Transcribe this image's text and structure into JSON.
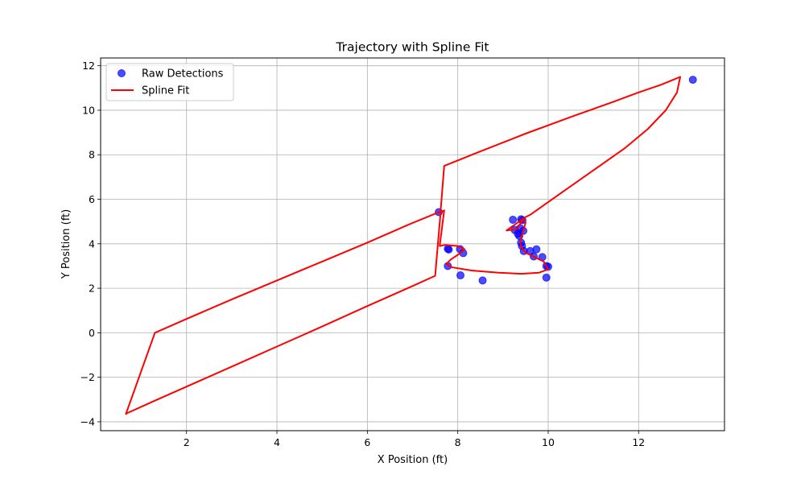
{
  "chart_data": {
    "type": "scatter",
    "title": "Trajectory with Spline Fit",
    "xlabel": "X Position (ft)",
    "ylabel": "Y Position (ft)",
    "xlim": [
      0.1,
      13.9
    ],
    "ylim": [
      -4.4,
      12.35
    ],
    "xticks": [
      2,
      4,
      6,
      8,
      10,
      12
    ],
    "yticks": [
      -4,
      -2,
      0,
      2,
      4,
      6,
      8,
      10,
      12
    ],
    "grid": true,
    "legend": "top-left",
    "series": [
      {
        "name": "Raw Detections",
        "kind": "points",
        "color": "#0000ff",
        "x": [
          7.58,
          7.78,
          7.8,
          8.05,
          8.12,
          7.78,
          8.06,
          8.55,
          9.22,
          9.26,
          9.33,
          9.36,
          9.38,
          9.4,
          9.43,
          9.45,
          9.4,
          9.42,
          9.46,
          9.6,
          9.68,
          9.74,
          9.87,
          9.96,
          10.0,
          9.96,
          13.2
        ],
        "y": [
          5.42,
          3.78,
          3.74,
          3.76,
          3.58,
          3.0,
          2.58,
          2.35,
          5.08,
          4.62,
          4.45,
          4.35,
          4.7,
          5.1,
          5.06,
          4.58,
          4.05,
          3.9,
          3.67,
          3.67,
          3.43,
          3.75,
          3.4,
          3.0,
          2.97,
          2.48,
          11.37
        ]
      },
      {
        "name": "Spline Fit",
        "kind": "line",
        "color": "#ff0000",
        "x": [
          9.08,
          9.5,
          9.6,
          10.3,
          11.0,
          11.7,
          12.2,
          12.6,
          12.85,
          12.92,
          12.8,
          12.5,
          12.0,
          11.4,
          10.5,
          9.5,
          8.5,
          7.7,
          7.62,
          6.9,
          6.0,
          5.0,
          4.0,
          3.0,
          2.0,
          1.3,
          0.66,
          0.68,
          1.3,
          2.0,
          3.0,
          4.0,
          5.0,
          6.0,
          7.0,
          7.5,
          7.62,
          7.7,
          7.6,
          7.72,
          8.0,
          8.15,
          8.0,
          7.85,
          7.75,
          7.85,
          8.3,
          8.9,
          9.4,
          9.8,
          10.0,
          9.9,
          9.75,
          9.5,
          9.4,
          9.38,
          9.44,
          9.5,
          9.45,
          9.38,
          9.3,
          9.08
        ],
        "y": [
          4.6,
          5.2,
          5.3,
          6.3,
          7.3,
          8.3,
          9.15,
          10.0,
          10.8,
          11.5,
          11.4,
          11.15,
          10.8,
          10.35,
          9.7,
          8.95,
          8.15,
          7.5,
          5.45,
          4.85,
          4.05,
          3.2,
          2.35,
          1.5,
          0.62,
          0.0,
          -3.65,
          -3.62,
          -3.05,
          -2.42,
          -1.52,
          -0.62,
          0.28,
          1.2,
          2.1,
          2.56,
          5.4,
          5.5,
          3.9,
          3.95,
          3.9,
          3.75,
          3.5,
          3.3,
          3.1,
          2.95,
          2.8,
          2.7,
          2.65,
          2.7,
          2.85,
          3.2,
          3.35,
          3.6,
          3.85,
          4.1,
          4.5,
          4.95,
          5.1,
          4.9,
          4.65,
          4.6
        ]
      }
    ]
  }
}
